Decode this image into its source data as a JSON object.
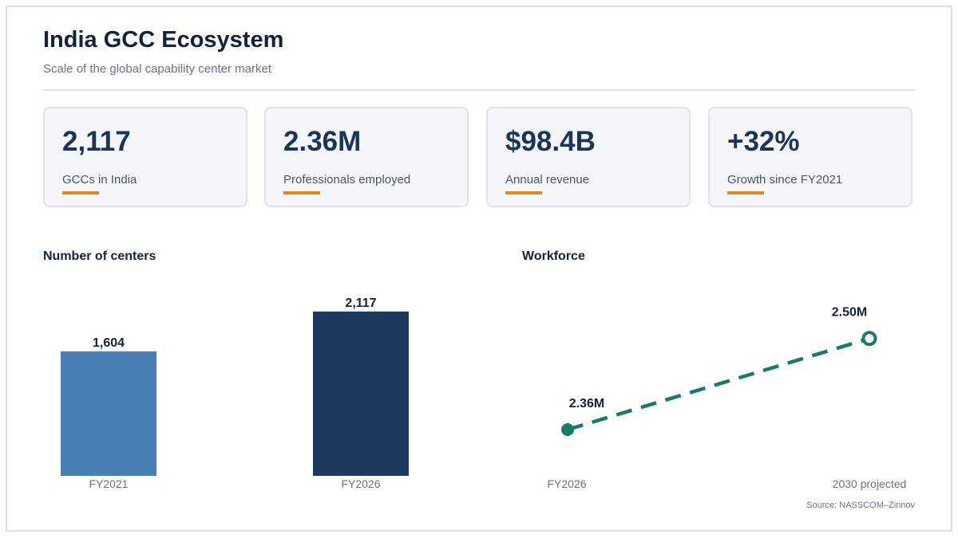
{
  "header": {
    "title": "India GCC Ecosystem",
    "subtitle": "Scale of the global capability center market"
  },
  "kpis": [
    {
      "value": "2,117",
      "label": "GCCs in India"
    },
    {
      "value": "2.36M",
      "label": "Professionals employed"
    },
    {
      "value": "$98.4B",
      "label": "Annual revenue"
    },
    {
      "value": "+32%",
      "label": "Growth since FY2021"
    }
  ],
  "colors": {
    "accent": "#e08a1e",
    "bar_light": "#4a7fb5",
    "bar_dark": "#1b3a5e",
    "line": "#177a6a"
  },
  "chart_data": [
    {
      "type": "bar",
      "title": "Number of centers",
      "categories": [
        "FY2021",
        "FY2026"
      ],
      "values": [
        1604,
        2117
      ],
      "value_labels": [
        "1,604",
        "2,117"
      ],
      "colors": [
        "#4a7fb5",
        "#1b3a5e"
      ],
      "ylim": [
        0,
        2300
      ],
      "grid": false
    },
    {
      "type": "line",
      "title": "Workforce",
      "categories": [
        "FY2026",
        "2030 projected"
      ],
      "values": [
        2.36,
        2.5
      ],
      "value_labels": [
        "2.36M",
        "2.50M"
      ],
      "markers": [
        "filled",
        "hollow"
      ],
      "line_style": "dashed",
      "color": "#177a6a",
      "grid": false
    }
  ],
  "footer": {
    "source": "Source: NASSCOM–Zinnov"
  }
}
